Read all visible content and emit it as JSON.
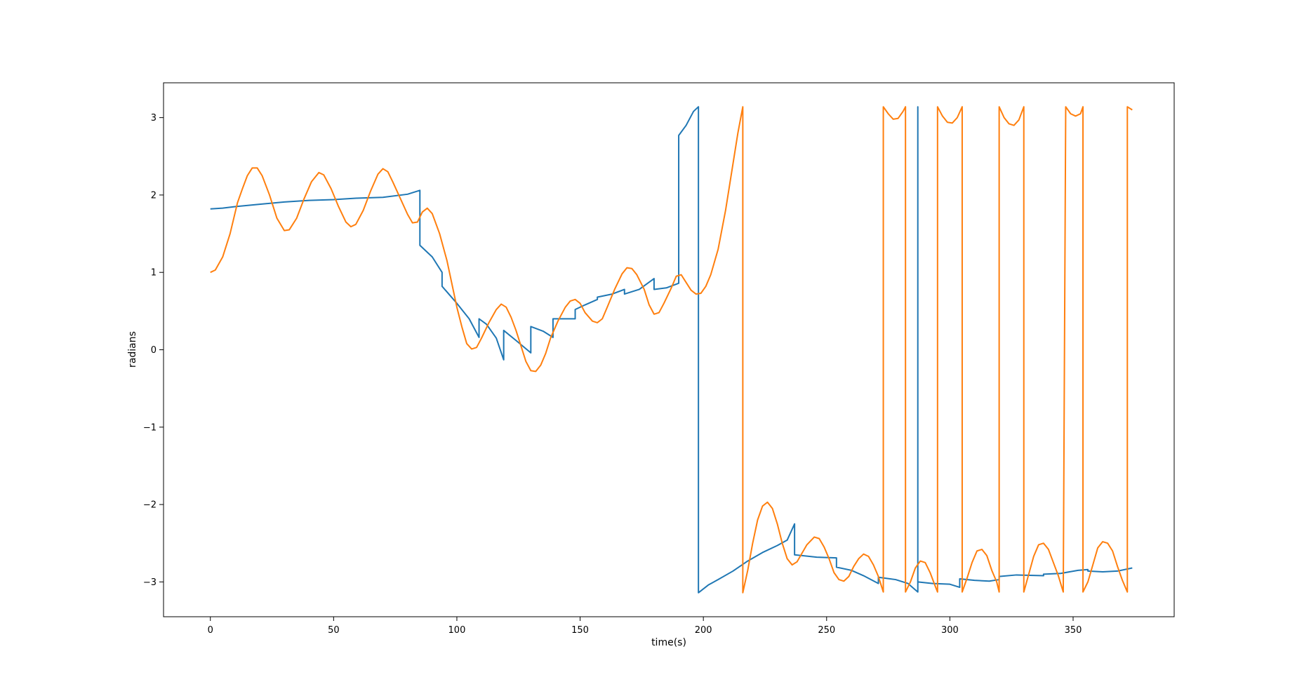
{
  "chart_data": {
    "type": "line",
    "xlabel": "time(s)",
    "ylabel": "radians",
    "xlim": [
      -19,
      391
    ],
    "ylim": [
      -3.45,
      3.45
    ],
    "x_ticks": [
      0,
      50,
      100,
      150,
      200,
      250,
      300,
      350
    ],
    "y_ticks": [
      -3,
      -2,
      -1,
      0,
      1,
      2,
      3
    ],
    "x_tick_labels": [
      "0",
      "50",
      "100",
      "150",
      "200",
      "250",
      "300",
      "350"
    ],
    "y_tick_labels": [
      "−3",
      "−2",
      "−1",
      "0",
      "1",
      "2",
      "3"
    ],
    "grid": false,
    "legend": "none",
    "series": [
      {
        "color": "#1f77b4",
        "points": [
          [
            0,
            1.82
          ],
          [
            5,
            1.83
          ],
          [
            10,
            1.85
          ],
          [
            20,
            1.88
          ],
          [
            30,
            1.91
          ],
          [
            40,
            1.93
          ],
          [
            50,
            1.94
          ],
          [
            60,
            1.96
          ],
          [
            70,
            1.97
          ],
          [
            80,
            2.01
          ],
          [
            85,
            2.06
          ],
          [
            85,
            1.35
          ],
          [
            90,
            1.2
          ],
          [
            94,
            1.0
          ],
          [
            94,
            0.82
          ],
          [
            100,
            0.6
          ],
          [
            105,
            0.4
          ],
          [
            109,
            0.16
          ],
          [
            109,
            0.4
          ],
          [
            112,
            0.33
          ],
          [
            116,
            0.15
          ],
          [
            119,
            -0.13
          ],
          [
            119,
            0.25
          ],
          [
            124,
            0.12
          ],
          [
            130,
            -0.04
          ],
          [
            130,
            0.3
          ],
          [
            135,
            0.24
          ],
          [
            139,
            0.16
          ],
          [
            139,
            0.4
          ],
          [
            148,
            0.4
          ],
          [
            148,
            0.52
          ],
          [
            152,
            0.58
          ],
          [
            157,
            0.65
          ],
          [
            157,
            0.68
          ],
          [
            163,
            0.72
          ],
          [
            168,
            0.78
          ],
          [
            168,
            0.72
          ],
          [
            174,
            0.78
          ],
          [
            180,
            0.92
          ],
          [
            180,
            0.78
          ],
          [
            185,
            0.8
          ],
          [
            190,
            0.86
          ],
          [
            190,
            2.77
          ],
          [
            193,
            2.9
          ],
          [
            196,
            3.08
          ],
          [
            198,
            3.14
          ],
          [
            198,
            -3.14
          ],
          [
            202,
            -3.04
          ],
          [
            206,
            -2.97
          ],
          [
            212,
            -2.86
          ],
          [
            218,
            -2.73
          ],
          [
            224,
            -2.62
          ],
          [
            230,
            -2.53
          ],
          [
            234,
            -2.46
          ],
          [
            237,
            -2.25
          ],
          [
            237,
            -2.65
          ],
          [
            246,
            -2.68
          ],
          [
            254,
            -2.69
          ],
          [
            254,
            -2.81
          ],
          [
            260,
            -2.85
          ],
          [
            265,
            -2.92
          ],
          [
            271,
            -3.02
          ],
          [
            271,
            -2.94
          ],
          [
            278,
            -2.97
          ],
          [
            283,
            -3.02
          ],
          [
            287,
            -3.13
          ],
          [
            287,
            3.14
          ],
          [
            287,
            -3.0
          ],
          [
            293,
            -3.02
          ],
          [
            300,
            -3.03
          ],
          [
            304,
            -3.07
          ],
          [
            304,
            -2.96
          ],
          [
            310,
            -2.98
          ],
          [
            316,
            -2.99
          ],
          [
            320,
            -2.97
          ],
          [
            320,
            -2.93
          ],
          [
            327,
            -2.91
          ],
          [
            338,
            -2.92
          ],
          [
            338,
            -2.9
          ],
          [
            345,
            -2.89
          ],
          [
            352,
            -2.85
          ],
          [
            356,
            -2.84
          ],
          [
            356,
            -2.86
          ],
          [
            362,
            -2.87
          ],
          [
            368,
            -2.86
          ],
          [
            374,
            -2.82
          ]
        ]
      },
      {
        "color": "#ff7f0e",
        "points": [
          [
            0,
            1.0
          ],
          [
            2,
            1.03
          ],
          [
            5,
            1.2
          ],
          [
            8,
            1.5
          ],
          [
            11,
            1.9
          ],
          [
            13,
            2.08
          ],
          [
            15,
            2.25
          ],
          [
            17,
            2.35
          ],
          [
            19,
            2.35
          ],
          [
            21,
            2.25
          ],
          [
            24,
            2.0
          ],
          [
            27,
            1.7
          ],
          [
            30,
            1.54
          ],
          [
            32,
            1.55
          ],
          [
            35,
            1.7
          ],
          [
            38,
            1.95
          ],
          [
            41,
            2.17
          ],
          [
            44,
            2.29
          ],
          [
            46,
            2.26
          ],
          [
            49,
            2.08
          ],
          [
            52,
            1.85
          ],
          [
            55,
            1.65
          ],
          [
            57,
            1.59
          ],
          [
            59,
            1.62
          ],
          [
            62,
            1.8
          ],
          [
            65,
            2.05
          ],
          [
            68,
            2.27
          ],
          [
            70,
            2.34
          ],
          [
            72,
            2.3
          ],
          [
            74,
            2.17
          ],
          [
            77,
            1.96
          ],
          [
            80,
            1.75
          ],
          [
            82,
            1.64
          ],
          [
            84,
            1.65
          ],
          [
            86,
            1.78
          ],
          [
            88,
            1.83
          ],
          [
            90,
            1.76
          ],
          [
            93,
            1.5
          ],
          [
            96,
            1.15
          ],
          [
            98,
            0.85
          ],
          [
            100,
            0.55
          ],
          [
            102,
            0.3
          ],
          [
            104,
            0.08
          ],
          [
            106,
            0.01
          ],
          [
            108,
            0.03
          ],
          [
            110,
            0.15
          ],
          [
            113,
            0.35
          ],
          [
            116,
            0.52
          ],
          [
            118,
            0.59
          ],
          [
            120,
            0.55
          ],
          [
            122,
            0.42
          ],
          [
            124,
            0.25
          ],
          [
            126,
            0.05
          ],
          [
            128,
            -0.15
          ],
          [
            130,
            -0.27
          ],
          [
            132,
            -0.28
          ],
          [
            134,
            -0.2
          ],
          [
            136,
            -0.05
          ],
          [
            138,
            0.15
          ],
          [
            141,
            0.37
          ],
          [
            144,
            0.55
          ],
          [
            146,
            0.63
          ],
          [
            148,
            0.65
          ],
          [
            150,
            0.6
          ],
          [
            152,
            0.48
          ],
          [
            155,
            0.37
          ],
          [
            157,
            0.35
          ],
          [
            159,
            0.4
          ],
          [
            161,
            0.55
          ],
          [
            164,
            0.78
          ],
          [
            167,
            0.98
          ],
          [
            169,
            1.06
          ],
          [
            171,
            1.05
          ],
          [
            173,
            0.97
          ],
          [
            176,
            0.78
          ],
          [
            178,
            0.58
          ],
          [
            180,
            0.46
          ],
          [
            182,
            0.48
          ],
          [
            184,
            0.6
          ],
          [
            187,
            0.8
          ],
          [
            189,
            0.95
          ],
          [
            191,
            0.97
          ],
          [
            193,
            0.87
          ],
          [
            195,
            0.77
          ],
          [
            197,
            0.72
          ],
          [
            199,
            0.73
          ],
          [
            201,
            0.82
          ],
          [
            203,
            0.97
          ],
          [
            206,
            1.3
          ],
          [
            209,
            1.8
          ],
          [
            212,
            2.4
          ],
          [
            214,
            2.8
          ],
          [
            216,
            3.14
          ],
          [
            216,
            -3.14
          ],
          [
            218,
            -2.85
          ],
          [
            220,
            -2.5
          ],
          [
            222,
            -2.2
          ],
          [
            224,
            -2.02
          ],
          [
            226,
            -1.97
          ],
          [
            228,
            -2.05
          ],
          [
            230,
            -2.25
          ],
          [
            232,
            -2.5
          ],
          [
            234,
            -2.7
          ],
          [
            236,
            -2.78
          ],
          [
            238,
            -2.74
          ],
          [
            240,
            -2.63
          ],
          [
            242,
            -2.52
          ],
          [
            245,
            -2.42
          ],
          [
            247,
            -2.44
          ],
          [
            249,
            -2.55
          ],
          [
            251,
            -2.7
          ],
          [
            253,
            -2.88
          ],
          [
            255,
            -2.97
          ],
          [
            257,
            -2.99
          ],
          [
            259,
            -2.93
          ],
          [
            261,
            -2.8
          ],
          [
            263,
            -2.7
          ],
          [
            265,
            -2.64
          ],
          [
            267,
            -2.67
          ],
          [
            269,
            -2.78
          ],
          [
            271,
            -2.93
          ],
          [
            273,
            -3.13
          ],
          [
            273,
            3.14
          ],
          [
            275,
            3.05
          ],
          [
            277,
            2.98
          ],
          [
            279,
            2.99
          ],
          [
            281,
            3.08
          ],
          [
            282,
            3.14
          ],
          [
            282,
            -3.13
          ],
          [
            284,
            -3.0
          ],
          [
            286,
            -2.82
          ],
          [
            288,
            -2.73
          ],
          [
            290,
            -2.75
          ],
          [
            292,
            -2.88
          ],
          [
            294,
            -3.05
          ],
          [
            295,
            -3.13
          ],
          [
            295,
            3.14
          ],
          [
            297,
            3.02
          ],
          [
            299,
            2.94
          ],
          [
            301,
            2.93
          ],
          [
            303,
            3.0
          ],
          [
            305,
            3.14
          ],
          [
            305,
            -3.13
          ],
          [
            307,
            -2.95
          ],
          [
            309,
            -2.75
          ],
          [
            311,
            -2.6
          ],
          [
            313,
            -2.58
          ],
          [
            315,
            -2.66
          ],
          [
            317,
            -2.85
          ],
          [
            319,
            -3.0
          ],
          [
            320,
            -3.13
          ],
          [
            320,
            3.14
          ],
          [
            322,
            3.0
          ],
          [
            324,
            2.92
          ],
          [
            326,
            2.9
          ],
          [
            328,
            2.97
          ],
          [
            330,
            3.14
          ],
          [
            330,
            -3.13
          ],
          [
            332,
            -2.9
          ],
          [
            334,
            -2.67
          ],
          [
            336,
            -2.52
          ],
          [
            338,
            -2.5
          ],
          [
            340,
            -2.58
          ],
          [
            342,
            -2.75
          ],
          [
            344,
            -2.92
          ],
          [
            346,
            -3.13
          ],
          [
            347,
            3.14
          ],
          [
            349,
            3.05
          ],
          [
            351,
            3.02
          ],
          [
            353,
            3.05
          ],
          [
            354,
            3.14
          ],
          [
            354,
            -3.13
          ],
          [
            356,
            -3.0
          ],
          [
            358,
            -2.78
          ],
          [
            360,
            -2.56
          ],
          [
            362,
            -2.48
          ],
          [
            364,
            -2.5
          ],
          [
            366,
            -2.6
          ],
          [
            368,
            -2.8
          ],
          [
            370,
            -2.98
          ],
          [
            372,
            -3.13
          ],
          [
            372,
            3.14
          ],
          [
            374,
            3.1
          ]
        ]
      }
    ]
  }
}
